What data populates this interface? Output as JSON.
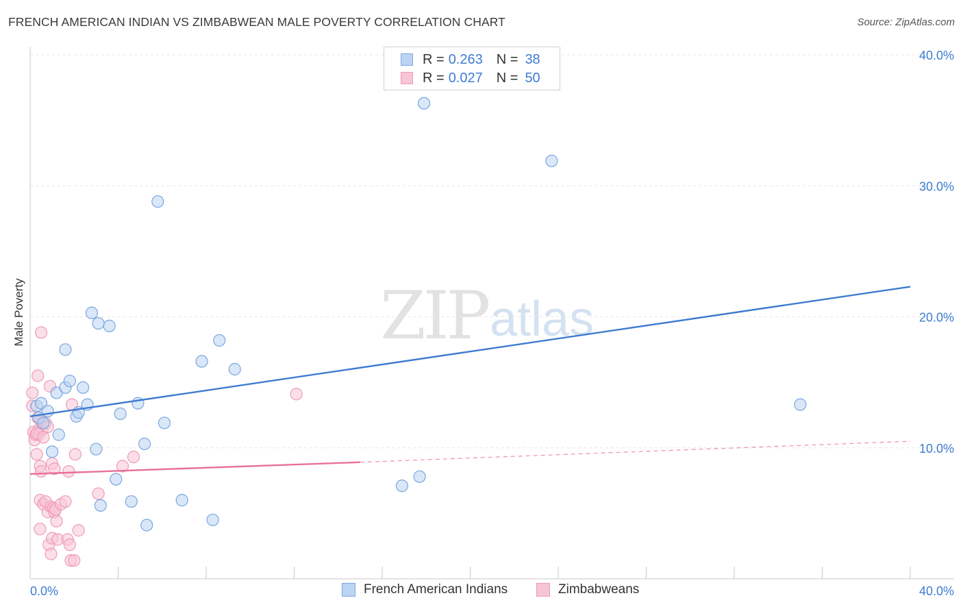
{
  "title": "FRENCH AMERICAN INDIAN VS ZIMBABWEAN MALE POVERTY CORRELATION CHART",
  "source": "Source: ZipAtlas.com",
  "watermark": {
    "zip": "ZIP",
    "atlas": "atlas"
  },
  "colors": {
    "blue": "#3d7bd1",
    "blue_fill": "#bcd4f3",
    "blue_stroke": "#7aa6e0",
    "pink": "#e8709a",
    "pink_fill": "#f7c5d6",
    "pink_stroke": "#ef9ab8",
    "grid": "#e6e6e6",
    "tick_label": "#3d7bd1"
  },
  "legend": {
    "rows": [
      {
        "r_label": "R =",
        "r_value": "0.263",
        "n_label": "N =",
        "n_value": "38"
      },
      {
        "r_label": "R =",
        "r_value": "0.027",
        "n_label": "N =",
        "n_value": "50"
      }
    ]
  },
  "bottom_legend": {
    "series1": "French American Indians",
    "series2": "Zimbabweans"
  },
  "chart_data": {
    "type": "scatter",
    "title": "FRENCH AMERICAN INDIAN VS ZIMBABWEAN MALE POVERTY CORRELATION CHART",
    "xlabel": "",
    "ylabel": "Male Poverty",
    "xlim": [
      0,
      40
    ],
    "ylim": [
      0,
      40
    ],
    "x_tick_labels": [
      "0.0%",
      "40.0%"
    ],
    "y_ticks": [
      10,
      20,
      30,
      40
    ],
    "y_tick_labels": [
      "10.0%",
      "20.0%",
      "30.0%",
      "40.0%"
    ],
    "series": [
      {
        "name": "French American Indians",
        "r": 0.263,
        "n": 38,
        "trend": {
          "x": [
            0,
            40
          ],
          "y": [
            12.4,
            22.3
          ]
        },
        "points": [
          [
            0.3,
            13.2
          ],
          [
            0.4,
            12.3
          ],
          [
            0.5,
            13.4
          ],
          [
            0.8,
            12.8
          ],
          [
            0.6,
            11.9
          ],
          [
            1.0,
            9.7
          ],
          [
            1.3,
            11.0
          ],
          [
            1.2,
            14.2
          ],
          [
            1.6,
            14.6
          ],
          [
            1.6,
            17.5
          ],
          [
            1.8,
            15.1
          ],
          [
            2.1,
            12.4
          ],
          [
            2.2,
            12.7
          ],
          [
            2.4,
            14.6
          ],
          [
            2.6,
            13.3
          ],
          [
            2.8,
            20.3
          ],
          [
            3.0,
            9.9
          ],
          [
            3.1,
            19.5
          ],
          [
            3.2,
            5.6
          ],
          [
            3.6,
            19.3
          ],
          [
            3.9,
            7.6
          ],
          [
            4.1,
            12.6
          ],
          [
            4.6,
            5.9
          ],
          [
            4.9,
            13.4
          ],
          [
            5.2,
            10.3
          ],
          [
            5.3,
            4.1
          ],
          [
            5.8,
            28.8
          ],
          [
            6.1,
            11.9
          ],
          [
            6.9,
            6.0
          ],
          [
            7.8,
            16.6
          ],
          [
            8.3,
            4.5
          ],
          [
            8.6,
            18.2
          ],
          [
            9.3,
            16.0
          ],
          [
            16.9,
            7.1
          ],
          [
            17.7,
            7.8
          ],
          [
            17.9,
            36.3
          ],
          [
            23.7,
            31.9
          ],
          [
            35.0,
            13.3
          ]
        ]
      },
      {
        "name": "Zimbabweans",
        "r": 0.027,
        "n": 50,
        "trend": {
          "x": [
            0,
            15
          ],
          "y": [
            8.0,
            8.9
          ]
        },
        "trend_dashed": {
          "x": [
            15,
            40
          ],
          "y": [
            8.9,
            10.5
          ]
        },
        "points": [
          [
            0.1,
            14.2
          ],
          [
            0.1,
            13.2
          ],
          [
            0.15,
            11.2
          ],
          [
            0.2,
            10.6
          ],
          [
            0.25,
            11.0
          ],
          [
            0.3,
            9.5
          ],
          [
            0.35,
            12.3
          ],
          [
            0.35,
            15.5
          ],
          [
            0.4,
            11.4
          ],
          [
            0.4,
            11.0
          ],
          [
            0.45,
            8.6
          ],
          [
            0.5,
            8.2
          ],
          [
            0.5,
            12.0
          ],
          [
            0.55,
            11.4
          ],
          [
            0.45,
            6.0
          ],
          [
            0.45,
            3.8
          ],
          [
            0.5,
            18.8
          ],
          [
            0.6,
            5.7
          ],
          [
            0.7,
            11.9
          ],
          [
            0.7,
            5.9
          ],
          [
            0.8,
            11.6
          ],
          [
            0.8,
            5.1
          ],
          [
            0.85,
            2.6
          ],
          [
            0.9,
            14.7
          ],
          [
            0.95,
            5.5
          ],
          [
            0.95,
            1.9
          ],
          [
            1.0,
            8.8
          ],
          [
            1.0,
            3.1
          ],
          [
            1.05,
            5.4
          ],
          [
            1.1,
            5.1
          ],
          [
            1.1,
            8.4
          ],
          [
            1.15,
            5.3
          ],
          [
            1.2,
            4.4
          ],
          [
            1.25,
            3.0
          ],
          [
            1.4,
            5.7
          ],
          [
            1.6,
            5.9
          ],
          [
            1.7,
            3.0
          ],
          [
            1.75,
            8.2
          ],
          [
            1.8,
            2.6
          ],
          [
            1.85,
            1.4
          ],
          [
            1.9,
            13.3
          ],
          [
            2.0,
            1.4
          ],
          [
            2.05,
            9.5
          ],
          [
            2.2,
            3.7
          ],
          [
            3.1,
            6.5
          ],
          [
            4.2,
            8.6
          ],
          [
            4.7,
            9.3
          ],
          [
            12.1,
            14.1
          ],
          [
            0.3,
            11.1
          ],
          [
            0.6,
            10.8
          ]
        ]
      }
    ]
  }
}
